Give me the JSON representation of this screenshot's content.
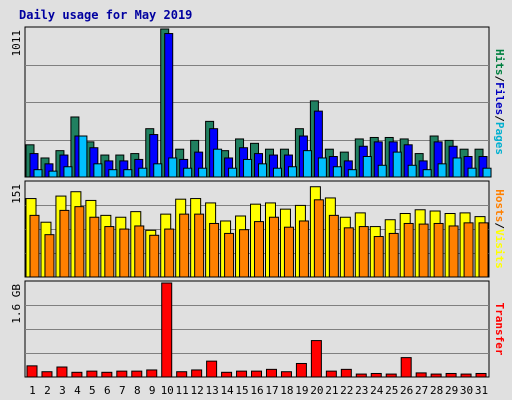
{
  "chart_data": {
    "type": "bar",
    "title": "Daily usage for May 2019",
    "categories": [
      "1",
      "2",
      "3",
      "4",
      "5",
      "6",
      "7",
      "8",
      "9",
      "10",
      "11",
      "12",
      "13",
      "14",
      "15",
      "16",
      "17",
      "18",
      "19",
      "20",
      "21",
      "22",
      "23",
      "24",
      "25",
      "26",
      "27",
      "28",
      "29",
      "30",
      "31"
    ],
    "weekend_days": [
      "4",
      "5",
      "11",
      "12",
      "18",
      "19",
      "25",
      "26"
    ],
    "panels": [
      {
        "id": "hits-files-pages",
        "ymax": 1011,
        "ytick_label": "1011",
        "ylabel_parts": [
          {
            "text": "Hits",
            "color": "#008040"
          },
          {
            "text": "/",
            "color": "#000000"
          },
          {
            "text": "Files",
            "color": "#0000c0"
          },
          {
            "text": "/",
            "color": "#000000"
          },
          {
            "text": "Pages",
            "color": "#00b0d0"
          }
        ],
        "series": [
          {
            "name": "Hits",
            "color": "#208060",
            "values": [
              220,
              130,
              180,
              410,
              240,
              150,
              150,
              160,
              330,
              1011,
              190,
              250,
              380,
              180,
              260,
              230,
              190,
              190,
              330,
              520,
              190,
              170,
              260,
              270,
              270,
              260,
              160,
              280,
              250,
              190,
              190
            ]
          },
          {
            "name": "Files",
            "color": "#0000ff",
            "values": [
              160,
              90,
              150,
              280,
              200,
              110,
              110,
              120,
              290,
              980,
              120,
              170,
              330,
              130,
              200,
              160,
              150,
              150,
              280,
              450,
              140,
              110,
              210,
              240,
              240,
              220,
              110,
              240,
              210,
              140,
              140
            ]
          },
          {
            "name": "Pages",
            "color": "#00c0ff",
            "values": [
              50,
              40,
              70,
              280,
              90,
              50,
              50,
              60,
              90,
              130,
              60,
              60,
              190,
              60,
              120,
              90,
              60,
              70,
              180,
              130,
              70,
              50,
              140,
              80,
              170,
              80,
              50,
              90,
              130,
              60,
              60
            ]
          }
        ]
      },
      {
        "id": "hosts-visits",
        "ymax": 151,
        "ytick_label": "151",
        "ylabel_parts": [
          {
            "text": "Hosts",
            "color": "#ff8000"
          },
          {
            "text": "/",
            "color": "#000000"
          },
          {
            "text": "Visits",
            "color": "#ffff00"
          }
        ],
        "series": [
          {
            "name": "Visits",
            "color": "#ffff00",
            "values": [
              126,
              88,
              130,
              137,
              123,
              99,
              96,
              105,
              75,
              101,
              125,
              126,
              119,
              90,
              98,
              117,
              119,
              109,
              115,
              145,
              127,
              96,
              103,
              81,
              92,
              102,
              108,
              106,
              102,
              103,
              97
            ]
          },
          {
            "name": "Hosts",
            "color": "#ff8000",
            "values": [
              99,
              68,
              107,
              113,
              96,
              81,
              77,
              82,
              67,
              77,
              101,
              101,
              86,
              70,
              76,
              89,
              96,
              80,
              90,
              124,
              99,
              79,
              81,
              65,
              70,
              86,
              85,
              86,
              82,
              87,
              87
            ]
          }
        ]
      },
      {
        "id": "transfer",
        "ymax": 1.6,
        "ytick_label": "1.6 GB",
        "ylabel_parts": [
          {
            "text": "Transfer",
            "color": "#ff0000"
          }
        ],
        "series": [
          {
            "name": "Transfer",
            "color": "#ff0000",
            "values": [
              0.19,
              0.09,
              0.17,
              0.08,
              0.1,
              0.08,
              0.1,
              0.1,
              0.12,
              1.6,
              0.09,
              0.12,
              0.27,
              0.08,
              0.1,
              0.1,
              0.13,
              0.09,
              0.23,
              0.62,
              0.1,
              0.13,
              0.05,
              0.06,
              0.05,
              0.33,
              0.07,
              0.05,
              0.06,
              0.05,
              0.06
            ]
          }
        ]
      }
    ]
  }
}
